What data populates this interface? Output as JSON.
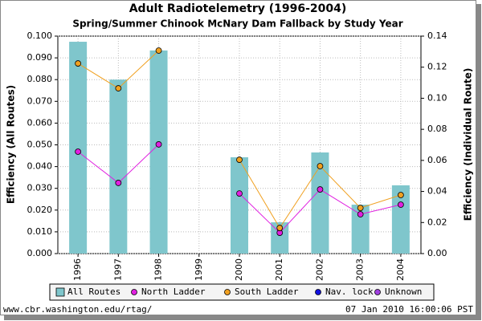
{
  "chart_data": {
    "type": "bar",
    "title": "Adult Radiotelemetry (1996-2004)",
    "subtitle": "Spring/Summer Chinook McNary Dam Fallback by Study Year",
    "ylabel": "Efficiency (All Routes)",
    "y2label": "Efficiency (Individual Route)",
    "categories": [
      "1996",
      "1997",
      "1998",
      "1999",
      "2000",
      "2001",
      "2002",
      "2003",
      "2004"
    ],
    "series": [
      {
        "name": "All Routes",
        "type": "bar",
        "axis": "y",
        "color": "#7fc6cc",
        "values": [
          0.0974,
          0.08,
          0.0934,
          null,
          0.0443,
          0.0144,
          0.0465,
          0.0225,
          0.0314
        ]
      },
      {
        "name": "North Ladder",
        "type": "line",
        "axis": "y2",
        "color": "#e020e0",
        "values": [
          0.0656,
          0.0455,
          0.0703,
          null,
          0.0387,
          0.0134,
          0.0413,
          0.0253,
          0.0315
        ]
      },
      {
        "name": "South Ladder",
        "type": "line",
        "axis": "y2",
        "color": "#f0a020",
        "values": [
          0.1224,
          0.1064,
          0.1307,
          null,
          0.0604,
          0.0165,
          0.0563,
          0.0294,
          0.0377
        ]
      },
      {
        "name": "Nav. lock",
        "type": "line",
        "axis": "y2",
        "color": "#1010e0",
        "values": [
          null,
          null,
          null,
          null,
          null,
          null,
          null,
          null,
          null
        ]
      },
      {
        "name": "Unknown",
        "type": "line",
        "axis": "y2",
        "color": "#a040e0",
        "values": [
          null,
          null,
          null,
          null,
          null,
          null,
          null,
          null,
          null
        ]
      }
    ],
    "ylim": [
      0,
      0.1
    ],
    "yticks": [
      {
        "value": 0,
        "label": "0.000"
      },
      {
        "value": 0.01,
        "label": "0.010"
      },
      {
        "value": 0.02,
        "label": "0.020"
      },
      {
        "value": 0.03,
        "label": "0.030"
      },
      {
        "value": 0.04,
        "label": "0.040"
      },
      {
        "value": 0.05,
        "label": "0.050"
      },
      {
        "value": 0.06,
        "label": "0.060"
      },
      {
        "value": 0.07,
        "label": "0.070"
      },
      {
        "value": 0.08,
        "label": "0.080"
      },
      {
        "value": 0.09,
        "label": "0.090"
      },
      {
        "value": 0.1,
        "label": "0.100"
      }
    ],
    "y2lim": [
      0,
      0.14
    ],
    "y2ticks": [
      {
        "value": 0,
        "label": "0.00"
      },
      {
        "value": 0.02,
        "label": "0.02"
      },
      {
        "value": 0.04,
        "label": "0.04"
      },
      {
        "value": 0.06,
        "label": "0.06"
      },
      {
        "value": 0.08,
        "label": "0.08"
      },
      {
        "value": 0.1,
        "label": "0.10"
      },
      {
        "value": 0.12,
        "label": "0.12"
      },
      {
        "value": 0.14,
        "label": "0.14"
      }
    ],
    "grid": true,
    "legend": "bottom",
    "source": "www.cbr.washington.edu/rtag/",
    "timestamp": "07 Jan 2010 16:00:06 PST"
  }
}
